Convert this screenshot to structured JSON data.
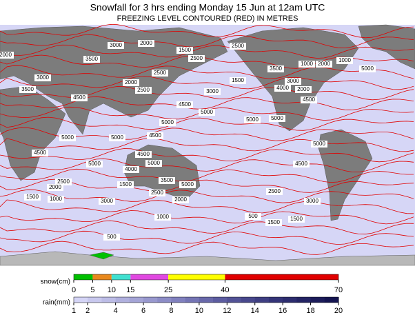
{
  "header": {
    "title": "Snowfall for 3 hrs ending Monday 15 Jun at 12am UTC",
    "subtitle": "FREEZING LEVEL CONTOURED (RED) IN METRES"
  },
  "map": {
    "contour_labels": [
      "3000",
      "2000",
      "3500",
      "1500",
      "2500",
      "2500",
      "2000",
      "3000",
      "3500",
      "4500",
      "2000",
      "2500",
      "2500",
      "3000",
      "1500",
      "4500",
      "5000",
      "5000",
      "5000",
      "3500",
      "3000",
      "4000",
      "1000",
      "2000",
      "2000",
      "4500",
      "5000",
      "5000",
      "5000",
      "5000",
      "5000",
      "5000",
      "4000",
      "4500",
      "4500",
      "3500",
      "5000",
      "1500",
      "2500",
      "2000",
      "1500",
      "1000",
      "2500",
      "2000",
      "2500",
      "1500",
      "3000",
      "1000",
      "500",
      "1500",
      "3000",
      "1000",
      "500",
      "4500",
      "4500",
      "5000"
    ]
  },
  "legend": {
    "snow": {
      "label": "snow(cm)",
      "xlim": [
        0,
        70
      ],
      "ticks": [
        0,
        5,
        10,
        15,
        25,
        40,
        70
      ],
      "colors": [
        "#00c000",
        "#e8881c",
        "#40e0d0",
        "#e048e0",
        "#ffff00",
        "#e00000"
      ]
    },
    "rain": {
      "label": "rain(mm)",
      "xlim": [
        1,
        20
      ],
      "ticks": [
        1,
        2,
        4,
        6,
        8,
        10,
        12,
        14,
        16,
        18,
        20
      ],
      "colors": [
        "#d4d4f6",
        "#c8c8ee",
        "#bcbce6",
        "#b0b0de",
        "#a4a4d6",
        "#9898ce",
        "#8c8cc6",
        "#8080be",
        "#7474b4",
        "#6868aa",
        "#5c5ca0",
        "#525296",
        "#48488c",
        "#3e3e82",
        "#343478",
        "#2c2c6e",
        "#242464",
        "#1c1c5a",
        "#141450"
      ]
    }
  }
}
